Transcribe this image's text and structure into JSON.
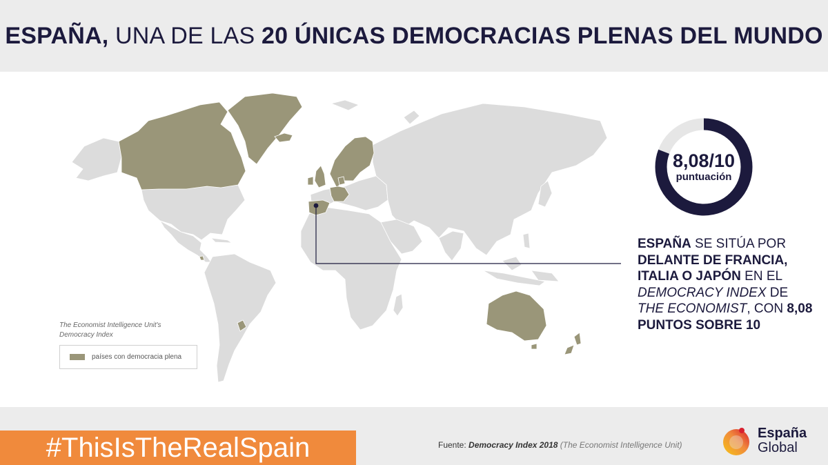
{
  "header": {
    "title_part1": "ESPAÑA,",
    "title_part2": "UNA DE LAS",
    "title_part3": "20 ÚNICAS DEMOCRACIAS PLENAS DEL MUNDO"
  },
  "map": {
    "highlight_color": "#9a9679",
    "base_color": "#dcdcdc",
    "highlighted_countries": [
      "Canada",
      "Greenland",
      "Iceland",
      "Norway",
      "Sweden",
      "Finland",
      "Denmark",
      "Ireland",
      "United Kingdom",
      "Netherlands",
      "Germany",
      "Luxembourg",
      "Switzerland",
      "Austria",
      "Spain",
      "Uruguay",
      "Costa Rica",
      "Australia",
      "New Zealand"
    ]
  },
  "legend": {
    "source_line1": "The Economist Intelligence Unit's",
    "source_line2": "Democracy Index",
    "label": "países con democracia plena"
  },
  "gauge": {
    "score": "8,08/10",
    "unit": "puntuación",
    "value": 8.08,
    "max": 10,
    "color": "#1c1a3d",
    "track_color": "#e6e6e6"
  },
  "statement": {
    "b1": "ESPAÑA",
    "t1": " SE SITÚA POR ",
    "b2": "DELANTE DE FRANCIA, ITALIA O JAPÓN",
    "t2": " EN EL ",
    "i1": "DEMOCRACY INDEX",
    "t3": " DE ",
    "i2": "THE ECONOMIST",
    "t4": ", CON ",
    "b3": "8,08 PUNTOS SOBRE 10"
  },
  "footer": {
    "hashtag": "#ThisIsTheRealSpain",
    "source_prefix": "Fuente: ",
    "source_title": "Democracy Index 2018",
    "source_org": " (The Economist Intelligence Unit)",
    "brand_line1": "España",
    "brand_line2": "Global",
    "hashtag_color": "#f08a3c"
  }
}
